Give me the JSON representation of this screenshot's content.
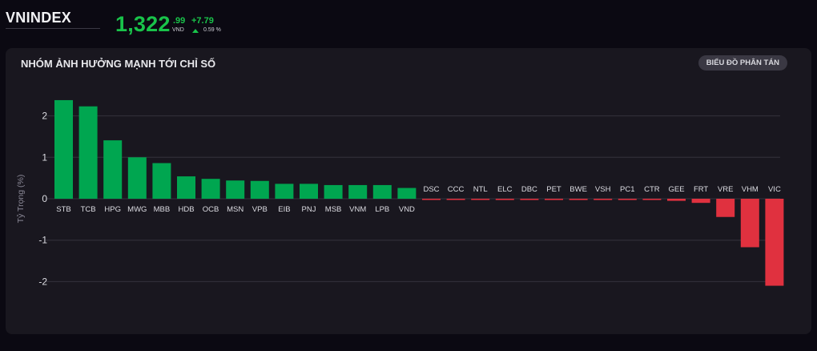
{
  "header": {
    "index_name": "VNINDEX",
    "price": "1,322",
    "price_decimal": ".99",
    "unit": "VND",
    "change": "+7.79",
    "change_pct": "0.59 %"
  },
  "panel": {
    "title": "NHÓM ẢNH HƯỞNG MẠNH TỚI CHỈ SỐ",
    "scatter_button": "BIỂU ĐỒ PHÂN TÁN"
  },
  "colors": {
    "positive": "#00a650",
    "negative": "#e0313f",
    "accent_green": "#19c34a"
  },
  "chart_data": {
    "type": "bar",
    "title": "",
    "xlabel": "",
    "ylabel": "Tỷ Trọng (%)",
    "ylim": [
      -2.2,
      2.6
    ],
    "yticks": [
      2,
      1,
      0,
      -1,
      -2
    ],
    "grid": true,
    "categories": [
      "STB",
      "TCB",
      "HPG",
      "MWG",
      "MBB",
      "HDB",
      "OCB",
      "MSN",
      "VPB",
      "EIB",
      "PNJ",
      "MSB",
      "VNM",
      "LPB",
      "VND",
      "DSC",
      "CCC",
      "NTL",
      "ELC",
      "DBC",
      "PET",
      "BWE",
      "VSH",
      "PC1",
      "CTR",
      "GEE",
      "FRT",
      "VRE",
      "VHM",
      "VIC"
    ],
    "values": [
      2.38,
      2.23,
      1.41,
      1.0,
      0.86,
      0.54,
      0.48,
      0.44,
      0.43,
      0.36,
      0.36,
      0.33,
      0.33,
      0.33,
      0.26,
      -0.01,
      -0.01,
      -0.02,
      -0.03,
      -0.03,
      -0.03,
      -0.03,
      -0.03,
      -0.03,
      -0.03,
      -0.05,
      -0.1,
      -0.44,
      -1.17,
      -2.1
    ]
  }
}
